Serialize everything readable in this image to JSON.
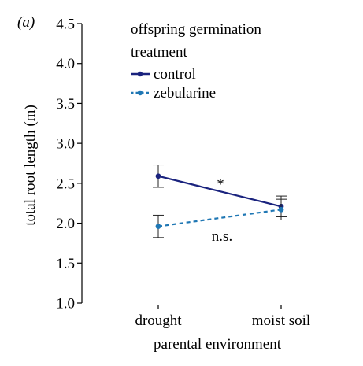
{
  "chart_data": {
    "type": "line",
    "panel_label": "(a)",
    "xlabel": "parental environment",
    "ylabel": "total root length (m)",
    "categories": [
      "drought",
      "moist soil"
    ],
    "ylim": [
      1.0,
      4.5
    ],
    "yticks": [
      "1.0",
      "1.5",
      "2.0",
      "2.5",
      "3.0",
      "3.5",
      "4.0",
      "4.5"
    ],
    "grid": false,
    "legend": {
      "title_line1": "offspring germination",
      "title_line2": "treatment",
      "placement": "top-right"
    },
    "series": [
      {
        "name": "control",
        "values": [
          2.59,
          2.21
        ],
        "error": [
          0.14,
          0.13
        ],
        "color": "#1a237e",
        "line_style": "solid"
      },
      {
        "name": "zebularine",
        "values": [
          1.96,
          2.17
        ],
        "error": [
          0.14,
          0.13
        ],
        "color": "#1f77b4",
        "line_style": "dashed"
      }
    ],
    "annotations": [
      {
        "text": "*",
        "near_series": "control"
      },
      {
        "text": "n.s.",
        "near_series": "zebularine"
      }
    ]
  }
}
